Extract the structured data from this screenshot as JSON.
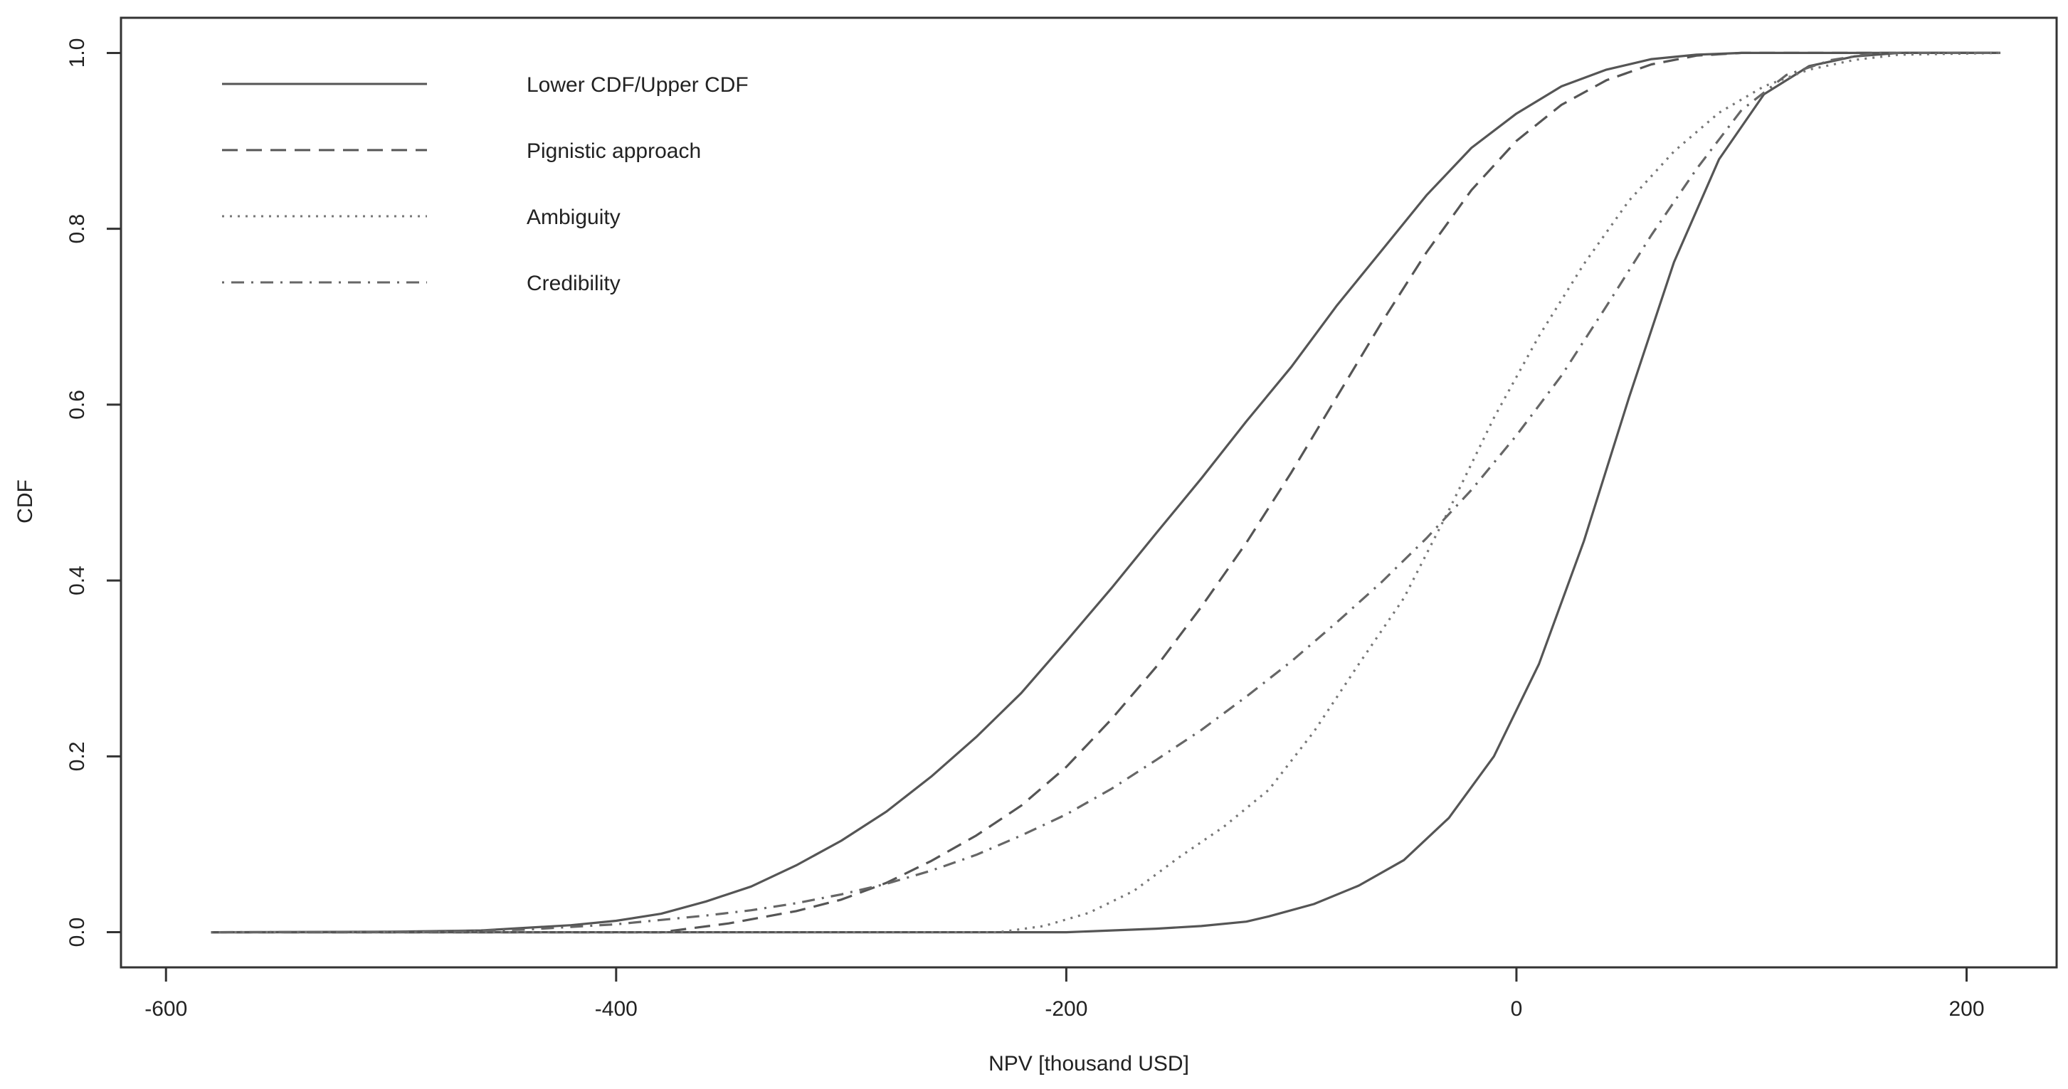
{
  "chart_data": {
    "type": "line",
    "title": "",
    "xlabel": "NPV [thousand USD]",
    "ylabel": "CDF",
    "xlim": [
      -620,
      240
    ],
    "ylim": [
      -0.04,
      1.04
    ],
    "x_ticks": [
      {
        "value": -600,
        "label": "-600"
      },
      {
        "value": -400,
        "label": "-400"
      },
      {
        "value": -200,
        "label": "-200"
      },
      {
        "value": 0,
        "label": "0"
      },
      {
        "value": 200,
        "label": "200"
      }
    ],
    "y_ticks": [
      {
        "value": 0.0,
        "label": "0.0"
      },
      {
        "value": 0.2,
        "label": "0.2"
      },
      {
        "value": 0.4,
        "label": "0.4"
      },
      {
        "value": 0.6,
        "label": "0.6"
      },
      {
        "value": 0.8,
        "label": "0.8"
      },
      {
        "value": 1.0,
        "label": "1.0"
      }
    ],
    "grid": false,
    "legend_position": "top-left",
    "series": [
      {
        "name": "Lower CDF/Upper CDF",
        "style": "solid",
        "color": "#555555",
        "legend": true,
        "points": [
          [
            -580,
            0
          ],
          [
            -500,
            0.0005
          ],
          [
            -460,
            0.002
          ],
          [
            -440,
            0.005
          ],
          [
            -420,
            0.008
          ],
          [
            -400,
            0.013
          ],
          [
            -380,
            0.021
          ],
          [
            -360,
            0.035
          ],
          [
            -340,
            0.052
          ],
          [
            -320,
            0.076
          ],
          [
            -300,
            0.104
          ],
          [
            -280,
            0.137
          ],
          [
            -260,
            0.177
          ],
          [
            -240,
            0.222
          ],
          [
            -220,
            0.272
          ],
          [
            -200,
            0.331
          ],
          [
            -180,
            0.391
          ],
          [
            -160,
            0.454
          ],
          [
            -140,
            0.516
          ],
          [
            -120,
            0.581
          ],
          [
            -100,
            0.643
          ],
          [
            -80,
            0.712
          ],
          [
            -60,
            0.775
          ],
          [
            -40,
            0.838
          ],
          [
            -20,
            0.892
          ],
          [
            0,
            0.931
          ],
          [
            20,
            0.962
          ],
          [
            40,
            0.981
          ],
          [
            60,
            0.993
          ],
          [
            80,
            0.998
          ],
          [
            100,
            1.0
          ],
          [
            215,
            1.0
          ]
        ]
      },
      {
        "name": "",
        "style": "solid",
        "color": "#555555",
        "legend": false,
        "points": [
          [
            -580,
            0
          ],
          [
            -200,
            0
          ],
          [
            -180,
            0.002
          ],
          [
            -160,
            0.004
          ],
          [
            -140,
            0.007
          ],
          [
            -120,
            0.012
          ],
          [
            -110,
            0.018
          ],
          [
            -90,
            0.032
          ],
          [
            -70,
            0.053
          ],
          [
            -50,
            0.082
          ],
          [
            -30,
            0.13
          ],
          [
            -10,
            0.2
          ],
          [
            10,
            0.305
          ],
          [
            30,
            0.445
          ],
          [
            50,
            0.608
          ],
          [
            70,
            0.762
          ],
          [
            90,
            0.879
          ],
          [
            110,
            0.953
          ],
          [
            130,
            0.985
          ],
          [
            150,
            0.996
          ],
          [
            170,
            1.0
          ],
          [
            215,
            1.0
          ]
        ]
      },
      {
        "name": "Pignistic approach",
        "style": "dashed",
        "color": "#555555",
        "legend": true,
        "points": [
          [
            -580,
            0
          ],
          [
            -380,
            0
          ],
          [
            -350,
            0.01
          ],
          [
            -320,
            0.024
          ],
          [
            -300,
            0.037
          ],
          [
            -280,
            0.056
          ],
          [
            -260,
            0.081
          ],
          [
            -240,
            0.11
          ],
          [
            -220,
            0.144
          ],
          [
            -200,
            0.188
          ],
          [
            -180,
            0.242
          ],
          [
            -160,
            0.302
          ],
          [
            -140,
            0.37
          ],
          [
            -120,
            0.443
          ],
          [
            -100,
            0.523
          ],
          [
            -80,
            0.608
          ],
          [
            -60,
            0.693
          ],
          [
            -40,
            0.773
          ],
          [
            -20,
            0.844
          ],
          [
            0,
            0.9
          ],
          [
            20,
            0.941
          ],
          [
            40,
            0.969
          ],
          [
            60,
            0.987
          ],
          [
            80,
            0.997
          ],
          [
            100,
            1.0
          ],
          [
            215,
            1.0
          ]
        ]
      },
      {
        "name": "Ambiguity",
        "style": "dotted",
        "color": "#777777",
        "legend": true,
        "points": [
          [
            -580,
            0
          ],
          [
            -230,
            0
          ],
          [
            -210,
            0.007
          ],
          [
            -190,
            0.022
          ],
          [
            -170,
            0.047
          ],
          [
            -150,
            0.085
          ],
          [
            -130,
            0.12
          ],
          [
            -110,
            0.162
          ],
          [
            -90,
            0.228
          ],
          [
            -70,
            0.305
          ],
          [
            -50,
            0.38
          ],
          [
            -30,
            0.48
          ],
          [
            -10,
            0.585
          ],
          [
            10,
            0.678
          ],
          [
            30,
            0.76
          ],
          [
            50,
            0.832
          ],
          [
            70,
            0.888
          ],
          [
            90,
            0.932
          ],
          [
            110,
            0.962
          ],
          [
            130,
            0.981
          ],
          [
            150,
            0.992
          ],
          [
            170,
            0.998
          ],
          [
            215,
            1.0
          ]
        ]
      },
      {
        "name": "Credibility",
        "style": "dashdot",
        "color": "#666666",
        "legend": true,
        "points": [
          [
            -580,
            0
          ],
          [
            -480,
            0.0005
          ],
          [
            -440,
            0.003
          ],
          [
            -420,
            0.006
          ],
          [
            -400,
            0.009
          ],
          [
            -380,
            0.014
          ],
          [
            -360,
            0.019
          ],
          [
            -340,
            0.025
          ],
          [
            -320,
            0.033
          ],
          [
            -300,
            0.043
          ],
          [
            -280,
            0.055
          ],
          [
            -260,
            0.07
          ],
          [
            -240,
            0.088
          ],
          [
            -220,
            0.11
          ],
          [
            -200,
            0.134
          ],
          [
            -180,
            0.163
          ],
          [
            -160,
            0.196
          ],
          [
            -140,
            0.23
          ],
          [
            -120,
            0.268
          ],
          [
            -100,
            0.308
          ],
          [
            -80,
            0.352
          ],
          [
            -60,
            0.398
          ],
          [
            -40,
            0.448
          ],
          [
            -20,
            0.503
          ],
          [
            0,
            0.565
          ],
          [
            20,
            0.633
          ],
          [
            40,
            0.712
          ],
          [
            60,
            0.793
          ],
          [
            80,
            0.868
          ],
          [
            100,
            0.935
          ],
          [
            120,
            0.975
          ],
          [
            140,
            0.992
          ],
          [
            160,
            1.0
          ],
          [
            215,
            1.0
          ]
        ]
      }
    ]
  }
}
